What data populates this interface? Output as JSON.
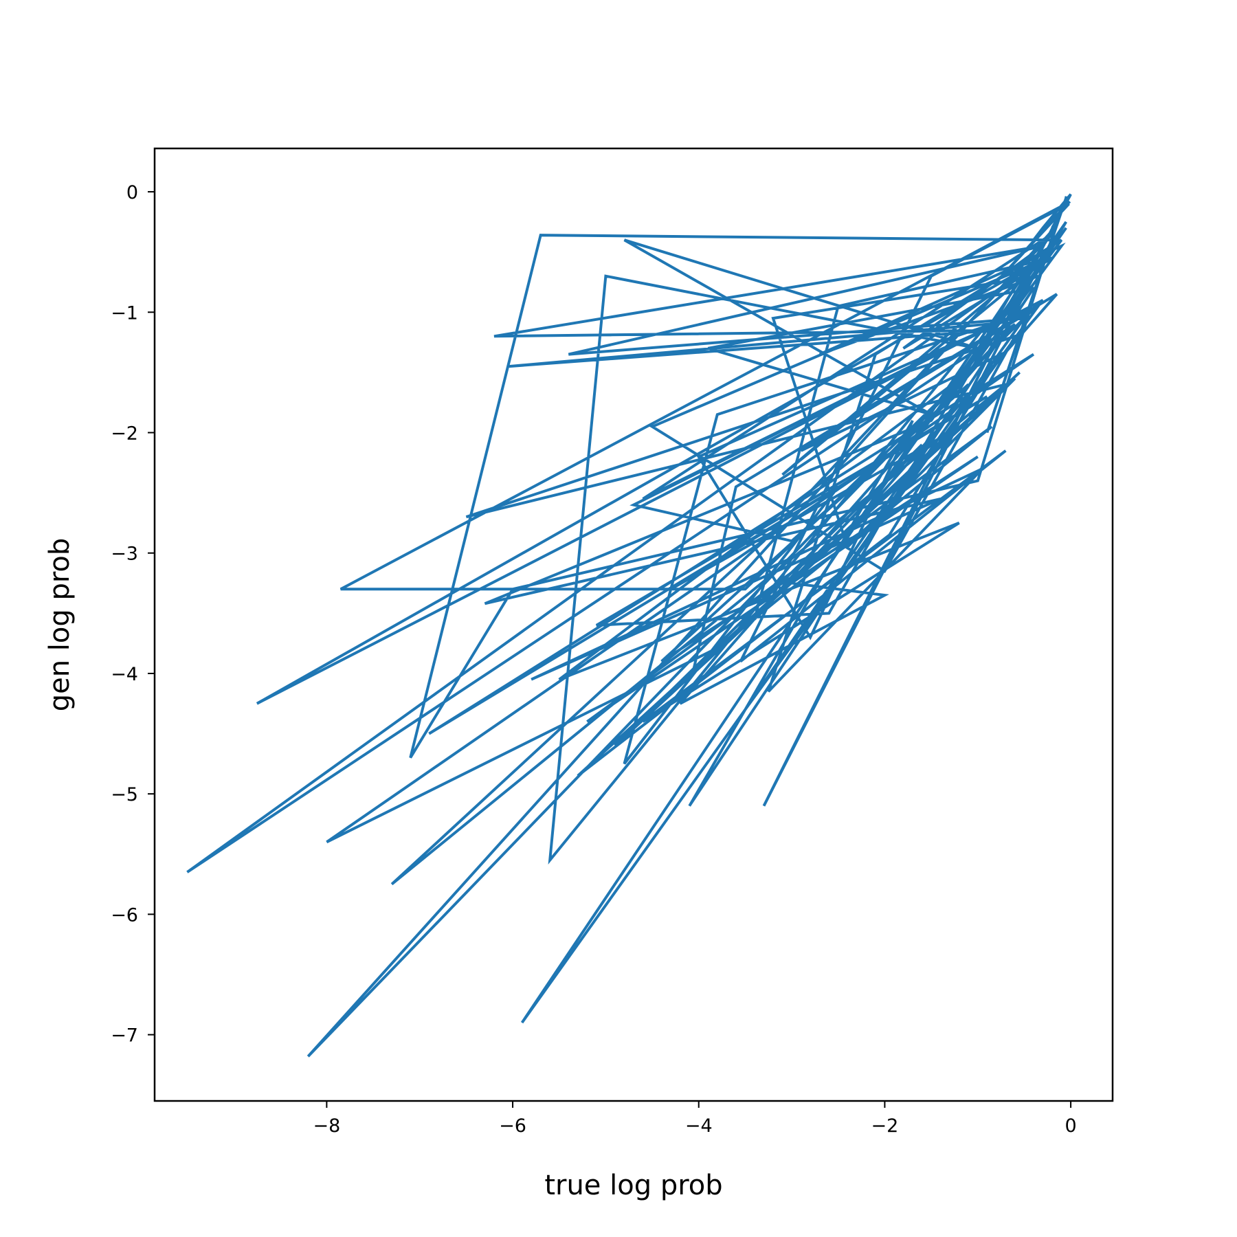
{
  "chart_data": {
    "type": "line",
    "title": "",
    "xlabel": "true log prob",
    "ylabel": "gen log prob",
    "xlim": [
      -9.85,
      0.45
    ],
    "ylim": [
      -7.55,
      0.36
    ],
    "grid": false,
    "legend": "none",
    "line_color": "#1f77b4",
    "x_ticks": [
      {
        "value": -8,
        "label": "−8"
      },
      {
        "value": -6,
        "label": "−6"
      },
      {
        "value": -4,
        "label": "−4"
      },
      {
        "value": -2,
        "label": "−2"
      },
      {
        "value": 0,
        "label": "0"
      }
    ],
    "y_ticks": [
      {
        "value": 0,
        "label": "0"
      },
      {
        "value": -1,
        "label": "−1"
      },
      {
        "value": -2,
        "label": "−2"
      },
      {
        "value": -3,
        "label": "−3"
      },
      {
        "value": -4,
        "label": "−4"
      },
      {
        "value": -5,
        "label": "−5"
      },
      {
        "value": -6,
        "label": "−6"
      },
      {
        "value": -7,
        "label": "−7"
      }
    ],
    "series": [
      {
        "x": [
          -0.05,
          -0.9,
          -0.1,
          -3.3,
          -0.2,
          -5.7,
          -7.1,
          -6.0,
          -1.0,
          -0.1,
          -7.85,
          -3.5,
          -0.3,
          -8.75,
          -0.4,
          -9.5,
          -0.6,
          -8.2,
          -0.15,
          -5.9,
          -0.5,
          -5.4,
          -0.3,
          -6.2,
          -0.8,
          -6.05,
          -0.9,
          -5.6,
          -5.0,
          -1.0,
          -4.8,
          -1.5,
          -3.9,
          -0.4,
          -4.1,
          -1.7,
          -2.8,
          -4.0,
          -0.35,
          -3.5,
          -1.1,
          -3.0,
          -4.7,
          -1.2,
          -4.6,
          -0.2,
          -3.3,
          -7.3,
          -0.7,
          -6.5,
          -0.6,
          -2.0,
          -4.5,
          -0.25,
          -3.1,
          -0.5,
          -2.6,
          -5.1,
          -0.9,
          -4.3,
          -1.3,
          -3.7,
          -8.0,
          -0.4,
          -6.9,
          -2.5,
          -4.8,
          -3.8,
          -0.45,
          -2.9,
          -0.75,
          -1.95,
          -5.3,
          -0.55,
          -4.9,
          -1.6,
          -3.4,
          -2.5,
          -0.2,
          -1.8,
          -0.3,
          -1.2,
          -4.4,
          -1.0,
          -5.2,
          -0.85,
          -4.05,
          -3.6,
          -0.15,
          -2.2,
          -0.05,
          -1.5,
          -6.3,
          -1.4,
          -5.8,
          -0.95,
          -3.25,
          -2.1,
          -0.1,
          -1.4,
          -0.05,
          -0.9,
          -4.2,
          -2.0,
          -3.0,
          -0.6,
          -2.4,
          -3.2,
          -0.35,
          -2.7,
          -0.1,
          -1.1,
          -5.5,
          -1.2,
          -4.6,
          -0.7,
          -3.55,
          -1.5,
          -0.02,
          -0.8,
          -0.01,
          -0.4,
          -0.3,
          0.0,
          -0.2,
          -0.02,
          -0.05
        ],
        "y": [
          -0.05,
          -2.0,
          -0.15,
          -5.1,
          -0.4,
          -0.36,
          -4.7,
          -3.3,
          -2.4,
          -0.12,
          -3.3,
          -3.3,
          -0.9,
          -4.25,
          -0.6,
          -5.65,
          -1.1,
          -7.18,
          -0.28,
          -6.9,
          -1.05,
          -1.35,
          -0.45,
          -1.2,
          -1.15,
          -1.45,
          -1.1,
          -5.55,
          -0.7,
          -1.3,
          -0.4,
          -1.85,
          -1.3,
          -0.8,
          -5.1,
          -1.9,
          -3.7,
          -2.2,
          -0.95,
          -4.3,
          -1.6,
          -2.9,
          -2.6,
          -1.25,
          -2.55,
          -0.35,
          -2.9,
          -5.75,
          -1.6,
          -2.7,
          -1.2,
          -3.15,
          -1.95,
          -0.55,
          -2.35,
          -0.65,
          -3.5,
          -3.6,
          -1.7,
          -3.3,
          -2.0,
          -3.75,
          -5.4,
          -1.35,
          -4.5,
          -2.45,
          -4.75,
          -1.85,
          -1.0,
          -2.15,
          -1.35,
          -2.85,
          -4.85,
          -1.5,
          -4.6,
          -2.1,
          -3.55,
          -0.95,
          -0.55,
          -1.3,
          -0.45,
          -1.65,
          -3.9,
          -2.2,
          -4.4,
          -1.95,
          -3.95,
          -2.45,
          -0.85,
          -2.65,
          -0.3,
          -1.9,
          -3.42,
          -2.55,
          -4.05,
          -2.3,
          -4.15,
          -1.35,
          -0.4,
          -1.75,
          -0.25,
          -1.35,
          -4.25,
          -3.35,
          -3.25,
          -1.55,
          -2.95,
          -1.05,
          -0.7,
          -1.35,
          -0.45,
          -1.5,
          -4.05,
          -2.75,
          -4.4,
          -2.15,
          -3.9,
          -0.7,
          -0.1,
          -0.75,
          -0.08,
          -0.4,
          -0.3,
          -0.02,
          -0.3,
          -0.05,
          -0.05
        ]
      }
    ]
  }
}
